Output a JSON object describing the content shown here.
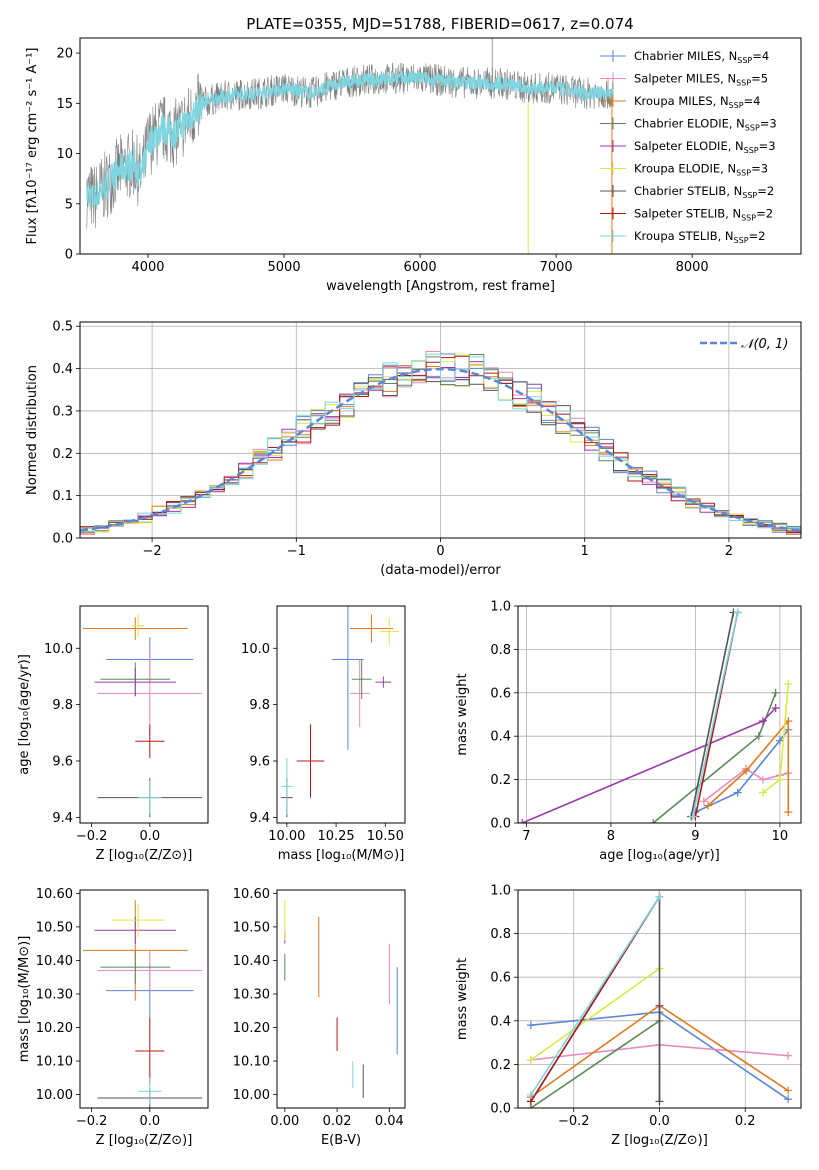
{
  "title": "PLATE=0355, MJD=51788, FIBERID=0617, z=0.074",
  "panels": {
    "spectrum": {
      "xlabel": "wavelength [Angstrom, rest frame]",
      "ylabel": "Flux [fλ10⁻¹⁷ erg cm⁻² s⁻¹ A⁻¹]"
    },
    "residuals": {
      "xlabel": "(data-model)/error",
      "ylabel": "Normed distribution",
      "legend": "𝒩(0, 1)"
    },
    "age_vs_Z": {
      "xlabel": "Z [log₁₀(Z/Z⊙)]",
      "ylabel": "age  [log₁₀(age/yr)]"
    },
    "age_vs_mass": {
      "xlabel": "mass [log₁₀(M/M⊙)]"
    },
    "weight_vs_age": {
      "xlabel": "age  [log₁₀(age/yr)]",
      "ylabel": "mass weight"
    },
    "mass_vs_Z": {
      "xlabel": "Z [log₁₀(Z/Z⊙)]",
      "ylabel": "mass [log₁₀(M/M⊙)]"
    },
    "mass_vs_ebv": {
      "xlabel": "E(B-V)"
    },
    "weight_vs_Z": {
      "xlabel": "Z [log₁₀(Z/Z⊙)]",
      "ylabel": "mass weight"
    }
  },
  "models": [
    {
      "name": "Chabrier MILES, N_SSP=4",
      "label": "Chabrier MILES, N",
      "sub": "SSP",
      "n": "=4",
      "color": "#5b86d6"
    },
    {
      "name": "Salpeter MILES, N_SSP=5",
      "label": "Salpeter MILES, N",
      "sub": "SSP",
      "n": "=5",
      "color": "#e88bbd"
    },
    {
      "name": "Kroupa MILES, N_SSP=4",
      "label": "Kroupa MILES, N",
      "sub": "SSP",
      "n": "=4",
      "color": "#e07b22"
    },
    {
      "name": "Chabrier ELODIE, N_SSP=3",
      "label": "Chabrier ELODIE, N",
      "sub": "SSP",
      "n": "=3",
      "color": "#5a8a5a"
    },
    {
      "name": "Salpeter ELODIE, N_SSP=3",
      "label": "Salpeter ELODIE, N",
      "sub": "SSP",
      "n": "=3",
      "color": "#9a3aa8"
    },
    {
      "name": "Kroupa ELODIE, N_SSP=3",
      "label": "Kroupa ELODIE, N",
      "sub": "SSP",
      "n": "=3",
      "color": "#d6ea4a"
    },
    {
      "name": "Chabrier STELIB, N_SSP=2",
      "label": "Chabrier STELIB, N",
      "sub": "SSP",
      "n": "=2",
      "color": "#555555"
    },
    {
      "name": "Salpeter STELIB, N_SSP=2",
      "label": "Salpeter STELIB, N",
      "sub": "SSP",
      "n": "=2",
      "color": "#b01a1a"
    },
    {
      "name": "Kroupa STELIB, N_SSP=2",
      "label": "Kroupa STELIB, N",
      "sub": "SSP",
      "n": "=2",
      "color": "#7ed6e0"
    }
  ],
  "chart_data": [
    {
      "type": "line",
      "panel": "spectrum",
      "xlim": [
        3500,
        8800
      ],
      "ylim": [
        0,
        21.5
      ],
      "xticks": [
        4000,
        5000,
        6000,
        7000,
        8000
      ],
      "yticks": [
        0,
        5,
        10,
        15,
        20
      ],
      "data_color": "#808080",
      "model_color": "#7ed6e0",
      "spectrum_knots": [
        [
          3550,
          6.0
        ],
        [
          3600,
          5.5
        ],
        [
          3700,
          7.0
        ],
        [
          3800,
          8.5
        ],
        [
          3900,
          9.0
        ],
        [
          3950,
          7.5
        ],
        [
          4000,
          11.0
        ],
        [
          4100,
          12.5
        ],
        [
          4200,
          12.0
        ],
        [
          4300,
          13.5
        ],
        [
          4400,
          15.0
        ],
        [
          4500,
          15.5
        ],
        [
          4600,
          15.8
        ],
        [
          4800,
          16.0
        ],
        [
          5000,
          16.5
        ],
        [
          5200,
          16.0
        ],
        [
          5400,
          17.0
        ],
        [
          5600,
          17.3
        ],
        [
          5800,
          17.5
        ],
        [
          6000,
          17.5
        ],
        [
          6200,
          17.2
        ],
        [
          6400,
          17.0
        ],
        [
          6600,
          17.0
        ],
        [
          6800,
          16.5
        ],
        [
          7000,
          16.5
        ],
        [
          7200,
          16.0
        ],
        [
          7350,
          16.0
        ]
      ]
    },
    {
      "type": "line",
      "panel": "residuals",
      "xlim": [
        -2.5,
        2.5
      ],
      "ylim": [
        0,
        0.51
      ],
      "xticks": [
        -2,
        -1,
        0,
        1,
        2
      ],
      "yticks": [
        0.0,
        0.1,
        0.2,
        0.3,
        0.4,
        0.5
      ],
      "bin_width": 0.1,
      "series": [
        {
          "name": "𝒩(0, 1)",
          "mean": 0,
          "sigma": 1
        }
      ]
    },
    {
      "type": "scatter",
      "panel": "age_vs_Z",
      "xlim": [
        -0.24,
        0.2
      ],
      "ylim": [
        9.38,
        10.15
      ],
      "xticks": [
        -0.2,
        0.0
      ],
      "yticks": [
        9.4,
        9.6,
        9.8,
        10.0
      ],
      "points": [
        {
          "model": "Chabrier MILES",
          "x": 0.0,
          "xerr": 0.15,
          "y": 9.96,
          "yerr": 0.08
        },
        {
          "model": "Salpeter MILES",
          "x": 0.0,
          "xerr": 0.18,
          "y": 9.84,
          "yerr": 0.15
        },
        {
          "model": "Kroupa MILES",
          "x": -0.05,
          "xerr": 0.18,
          "y": 10.07,
          "yerr": 0.04
        },
        {
          "model": "Chabrier ELODIE",
          "x": -0.05,
          "xerr": 0.12,
          "y": 9.89,
          "yerr": 0.06
        },
        {
          "model": "Salpeter ELODIE",
          "x": -0.05,
          "xerr": 0.14,
          "y": 9.88,
          "yerr": 0.05
        },
        {
          "model": "Kroupa ELODIE",
          "x": -0.04,
          "xerr": 0.02,
          "y": 10.08,
          "yerr": 0.04
        },
        {
          "model": "Chabrier STELIB",
          "x": 0.0,
          "xerr": 0.18,
          "y": 9.47,
          "yerr": 0.07
        },
        {
          "model": "Salpeter STELIB",
          "x": 0.0,
          "xerr": 0.05,
          "y": 9.67,
          "yerr": 0.06
        },
        {
          "model": "Kroupa STELIB",
          "x": 0.0,
          "xerr": 0.04,
          "y": 9.47,
          "yerr": 0.06
        }
      ]
    },
    {
      "type": "scatter",
      "panel": "age_vs_mass",
      "xlim": [
        9.95,
        10.6
      ],
      "ylim": [
        9.38,
        10.15
      ],
      "xticks": [
        10.0,
        10.25,
        10.5
      ],
      "yticks": [
        9.4,
        9.6,
        9.8,
        10.0
      ],
      "points": [
        {
          "model": "Chabrier MILES",
          "x": 10.31,
          "xerr": 0.08,
          "y": 9.96,
          "yerr": 0.32
        },
        {
          "model": "Salpeter MILES",
          "x": 10.37,
          "xerr": 0.05,
          "y": 9.84,
          "yerr": 0.12
        },
        {
          "model": "Kroupa MILES",
          "x": 10.43,
          "xerr": 0.11,
          "y": 10.07,
          "yerr": 0.05
        },
        {
          "model": "Chabrier ELODIE",
          "x": 10.38,
          "xerr": 0.05,
          "y": 9.89,
          "yerr": 0.07
        },
        {
          "model": "Salpeter ELODIE",
          "x": 10.49,
          "xerr": 0.04,
          "y": 9.88,
          "yerr": 0.02
        },
        {
          "model": "Kroupa ELODIE",
          "x": 10.52,
          "xerr": 0.05,
          "y": 10.06,
          "yerr": 0.05
        },
        {
          "model": "Chabrier STELIB",
          "x": 10.0,
          "xerr": 0.03,
          "y": 9.47,
          "yerr": 0.07
        },
        {
          "model": "Salpeter STELIB",
          "x": 10.12,
          "xerr": 0.07,
          "y": 9.6,
          "yerr": 0.13
        },
        {
          "model": "Kroupa STELIB",
          "x": 10.0,
          "xerr": 0.03,
          "y": 9.51,
          "yerr": 0.1
        }
      ]
    },
    {
      "type": "line",
      "panel": "weight_vs_age",
      "xlim": [
        6.9,
        10.25
      ],
      "ylim": [
        0,
        1.0
      ],
      "xticks": [
        7,
        8,
        9,
        10
      ],
      "yticks": [
        0.0,
        0.2,
        0.4,
        0.6,
        0.8,
        1.0
      ],
      "series": [
        {
          "name": "Chabrier MILES",
          "x": [
            9.0,
            9.5,
            10.0,
            10.1
          ],
          "y": [
            0.05,
            0.14,
            0.38,
            0.43
          ]
        },
        {
          "name": "Salpeter MILES",
          "x": [
            9.1,
            9.6,
            9.8,
            10.0,
            10.1
          ],
          "y": [
            0.1,
            0.25,
            0.2,
            0.22,
            0.23
          ]
        },
        {
          "name": "Kroupa MILES",
          "x": [
            9.15,
            9.6,
            10.1,
            10.1
          ],
          "y": [
            0.08,
            0.24,
            0.47,
            0.05
          ]
        },
        {
          "name": "Chabrier ELODIE",
          "x": [
            8.5,
            9.75,
            9.95
          ],
          "y": [
            0.0,
            0.4,
            0.6
          ]
        },
        {
          "name": "Salpeter ELODIE",
          "x": [
            6.95,
            9.8,
            9.95
          ],
          "y": [
            0.0,
            0.47,
            0.53
          ]
        },
        {
          "name": "Kroupa ELODIE",
          "x": [
            9.8,
            10.0,
            10.1
          ],
          "y": [
            0.14,
            0.2,
            0.64
          ]
        },
        {
          "name": "Chabrier STELIB",
          "x": [
            8.95,
            9.45
          ],
          "y": [
            0.03,
            0.97
          ]
        },
        {
          "name": "Salpeter STELIB",
          "x": [
            9.0,
            9.5
          ],
          "y": [
            0.03,
            0.97
          ]
        },
        {
          "name": "Kroupa STELIB",
          "x": [
            8.97,
            9.5
          ],
          "y": [
            0.03,
            0.97
          ]
        }
      ]
    },
    {
      "type": "scatter",
      "panel": "mass_vs_Z",
      "xlim": [
        -0.24,
        0.2
      ],
      "ylim": [
        9.96,
        10.61
      ],
      "xticks": [
        -0.2,
        0.0
      ],
      "yticks": [
        10.0,
        10.1,
        10.2,
        10.3,
        10.4,
        10.5,
        10.6
      ],
      "points": [
        {
          "model": "Chabrier MILES",
          "x": 0.0,
          "xerr": 0.15,
          "y": 10.31,
          "yerr": 0.08
        },
        {
          "model": "Salpeter MILES",
          "x": 0.0,
          "xerr": 0.18,
          "y": 10.37,
          "yerr": 0.06
        },
        {
          "model": "Kroupa MILES",
          "x": -0.05,
          "xerr": 0.18,
          "y": 10.43,
          "yerr": 0.15
        },
        {
          "model": "Chabrier ELODIE",
          "x": -0.05,
          "xerr": 0.12,
          "y": 10.38,
          "yerr": 0.05
        },
        {
          "model": "Salpeter ELODIE",
          "x": -0.05,
          "xerr": 0.14,
          "y": 10.49,
          "yerr": 0.04
        },
        {
          "model": "Kroupa ELODIE",
          "x": -0.04,
          "xerr": 0.09,
          "y": 10.52,
          "yerr": 0.05
        },
        {
          "model": "Chabrier STELIB",
          "x": 0.0,
          "xerr": 0.18,
          "y": 9.99,
          "yerr": 0.03
        },
        {
          "model": "Salpeter STELIB",
          "x": 0.0,
          "xerr": 0.05,
          "y": 10.13,
          "yerr": 0.1
        },
        {
          "model": "Kroupa STELIB",
          "x": 0.0,
          "xerr": 0.04,
          "y": 10.01,
          "yerr": 0.04
        }
      ]
    },
    {
      "type": "scatter",
      "panel": "mass_vs_ebv",
      "xlim": [
        -0.003,
        0.046
      ],
      "ylim": [
        9.96,
        10.61
      ],
      "xticks": [
        0.0,
        0.02,
        0.04
      ],
      "yticks": [
        10.0,
        10.1,
        10.2,
        10.3,
        10.4,
        10.5,
        10.6
      ],
      "points": [
        {
          "model": "Chabrier MILES",
          "x": 0.043,
          "y": 10.25,
          "yerr": 0.13
        },
        {
          "model": "Salpeter MILES",
          "x": 0.04,
          "y": 10.36,
          "yerr": 0.09
        },
        {
          "model": "Kroupa MILES",
          "x": 0.013,
          "y": 10.41,
          "yerr": 0.12
        },
        {
          "model": "Chabrier ELODIE",
          "x": 0.0,
          "y": 10.38,
          "yerr": 0.04
        },
        {
          "model": "Salpeter ELODIE",
          "x": 0.0,
          "y": 10.47,
          "yerr": 0.02
        },
        {
          "model": "Kroupa ELODIE",
          "x": 0.0,
          "y": 10.52,
          "yerr": 0.06
        },
        {
          "model": "Chabrier STELIB",
          "x": 0.03,
          "y": 10.04,
          "yerr": 0.05
        },
        {
          "model": "Salpeter STELIB",
          "x": 0.02,
          "y": 10.18,
          "yerr": 0.05
        },
        {
          "model": "Kroupa STELIB",
          "x": 0.026,
          "y": 10.06,
          "yerr": 0.04
        }
      ]
    },
    {
      "type": "line",
      "panel": "weight_vs_Z",
      "xlim": [
        -0.33,
        0.33
      ],
      "ylim": [
        0,
        1.0
      ],
      "xticks": [
        -0.2,
        0.0,
        0.2
      ],
      "yticks": [
        0.0,
        0.2,
        0.4,
        0.6,
        0.8,
        1.0
      ],
      "series": [
        {
          "name": "Chabrier MILES",
          "x": [
            -0.3,
            0.0,
            0.3
          ],
          "y": [
            0.38,
            0.44,
            0.04
          ]
        },
        {
          "name": "Salpeter MILES",
          "x": [
            -0.3,
            0.0,
            0.3
          ],
          "y": [
            0.22,
            0.29,
            0.24
          ]
        },
        {
          "name": "Kroupa MILES",
          "x": [
            -0.3,
            0.0,
            0.3
          ],
          "y": [
            0.05,
            0.47,
            0.08
          ]
        },
        {
          "name": "Chabrier ELODIE",
          "x": [
            -0.3,
            0.0
          ],
          "y": [
            0.0,
            0.4
          ]
        },
        {
          "name": "Salpeter ELODIE",
          "x": [
            0.0,
            0.0
          ],
          "y": [
            0.03,
            0.47
          ]
        },
        {
          "name": "Kroupa ELODIE",
          "x": [
            -0.3,
            0.0
          ],
          "y": [
            0.22,
            0.64
          ]
        },
        {
          "name": "Chabrier STELIB",
          "x": [
            -0.3,
            0.0,
            0.0
          ],
          "y": [
            0.03,
            0.97,
            0.03
          ]
        },
        {
          "name": "Salpeter STELIB",
          "x": [
            -0.3,
            0.0
          ],
          "y": [
            0.03,
            0.97
          ]
        },
        {
          "name": "Kroupa STELIB",
          "x": [
            -0.3,
            0.0
          ],
          "y": [
            0.06,
            0.97
          ]
        }
      ]
    }
  ]
}
